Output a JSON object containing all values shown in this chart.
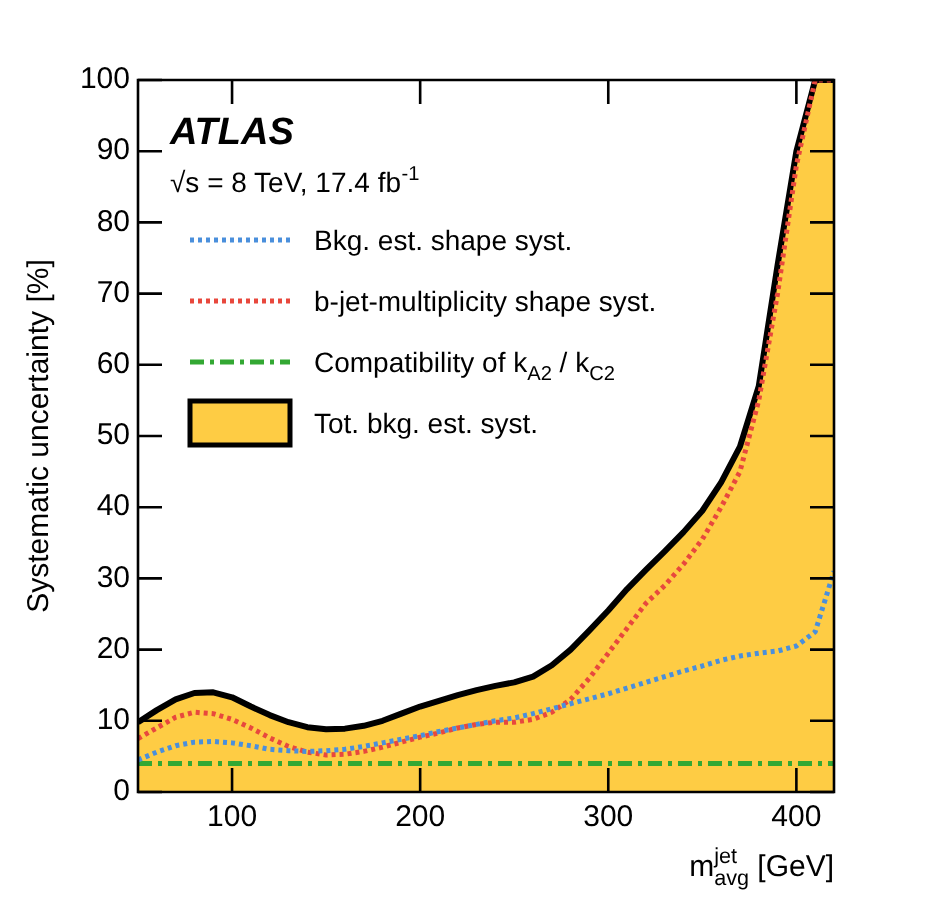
{
  "chart_data": {
    "type": "line",
    "title": "ATLAS",
    "subtitle": "√s = 8 TeV, 17.4 fb$^{-1}$",
    "xlabel": "m$^{jet}$$_{avg}$ [GeV]",
    "ylabel": "Systematic uncertainty [%]",
    "x": [
      50,
      60,
      70,
      80,
      90,
      100,
      110,
      120,
      130,
      140,
      150,
      160,
      170,
      180,
      190,
      200,
      210,
      220,
      230,
      240,
      250,
      260,
      270,
      280,
      290,
      300,
      310,
      320,
      330,
      340,
      350,
      360,
      370,
      380,
      390,
      400,
      410,
      420
    ],
    "series": [
      {
        "name": "Bkg. est. shape syst.",
        "color": "#4a8fdc",
        "line_style": "dotted",
        "values": [
          4.5,
          5.6,
          6.5,
          7,
          7.1,
          6.9,
          6.5,
          6,
          5.8,
          5.7,
          5.8,
          6,
          6.4,
          6.9,
          7.4,
          7.9,
          8.5,
          9,
          9.5,
          10,
          10.4,
          11,
          11.7,
          12.4,
          13.1,
          13.8,
          14.6,
          15.4,
          16.2,
          17,
          17.7,
          18.5,
          19.1,
          19.5,
          19.8,
          20.5,
          22.5,
          31
        ]
      },
      {
        "name": "b-jet-multiplicity shape syst.",
        "color": "#e8483d",
        "line_style": "dotted",
        "values": [
          7.5,
          9,
          10.5,
          11.2,
          11,
          10.2,
          9,
          7.6,
          6.4,
          5.6,
          5.2,
          5.3,
          5.7,
          6.3,
          7,
          7.7,
          8.3,
          9,
          9.5,
          9.8,
          9.8,
          10.2,
          11.2,
          13,
          16,
          19.5,
          23,
          26.5,
          29,
          32,
          35.5,
          40,
          45,
          55,
          70,
          88,
          100,
          100
        ]
      },
      {
        "name": "Compatibility of k$_{A2}$ / k$_{C2}$",
        "color": "#33a833",
        "line_style": "dashdot",
        "values": [
          4,
          4,
          4,
          4,
          4,
          4,
          4,
          4,
          4,
          4,
          4,
          4,
          4,
          4,
          4,
          4,
          4,
          4,
          4,
          4,
          4,
          4,
          4,
          4,
          4,
          4,
          4,
          4,
          4,
          4,
          4,
          4,
          4,
          4,
          4,
          4,
          4,
          4
        ]
      },
      {
        "name": "Tot. bkg. est. syst.",
        "type": "area",
        "color": "#fecc44",
        "values": [
          9.8,
          11.5,
          13,
          13.9,
          14,
          13.3,
          12,
          10.8,
          9.8,
          9.1,
          8.8,
          8.9,
          9.3,
          10,
          11,
          12,
          12.8,
          13.6,
          14.3,
          14.9,
          15.4,
          16.2,
          17.8,
          20,
          22.7,
          25.5,
          28.5,
          31.2,
          33.8,
          36.5,
          39.5,
          43.5,
          48.5,
          57,
          74,
          90,
          100,
          100
        ]
      }
    ],
    "xlim": [
      50,
      420
    ],
    "ylim": [
      0,
      100
    ],
    "xticks": [
      100,
      200,
      300,
      400
    ],
    "yticks": [
      0,
      10,
      20,
      30,
      40,
      50,
      60,
      70,
      80,
      90,
      100
    ],
    "legend": "top left",
    "marker": "none"
  }
}
